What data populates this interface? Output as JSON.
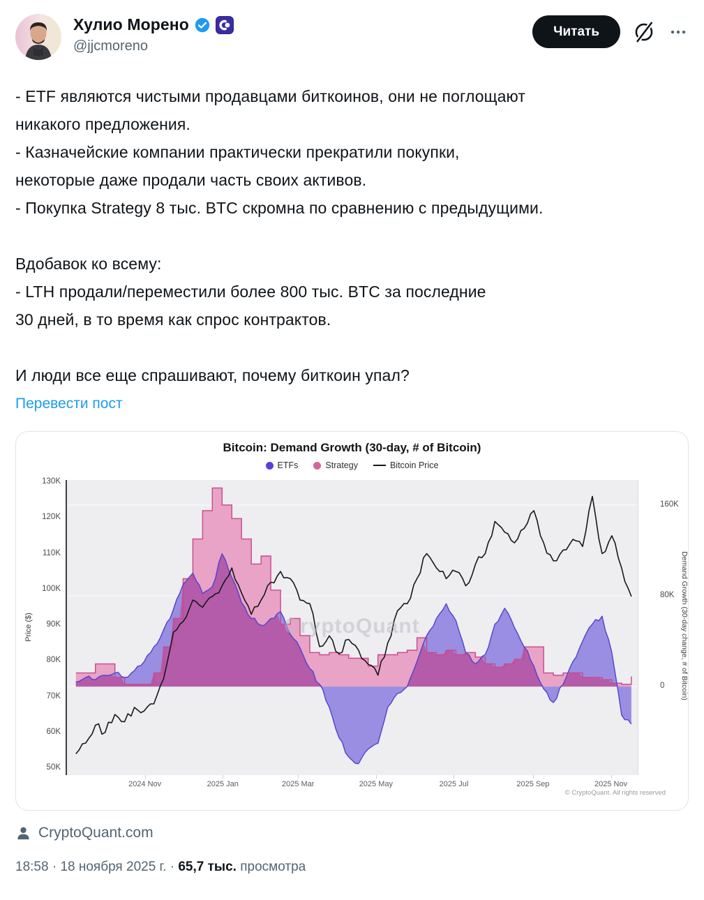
{
  "header": {
    "display_name": "Хулио Морено",
    "handle": "@jjcmoreno",
    "follow_button": "Читать",
    "badges": {
      "verified": "verified-check",
      "affiliate": "CryptoQuant"
    }
  },
  "tweet": {
    "body": "- ETF являются чистыми продавцами биткоинов, они не поглощают\nникакого предложения.\n- Казначейские компании практически прекратили покупки,\nнекоторые даже продали часть своих активов.\n- Покупка Strategy 8 тыс. BTC скромна по сравнению с предыдущими.\n\nВдобавок ко всему:\n- LTH продали/переместили более 800 тыс. BTC за последние\n30 дней, в то время как спрос контрактов.\n\nИ люди все еще спрашивают, почему биткоин упал?",
    "translate_link": "Перевести пост"
  },
  "chart_data": {
    "type": "area",
    "title": "Bitcoin: Demand Growth (30-day, # of Bitcoin)",
    "watermark": "CryptoQuant",
    "copyright": "© CryptoQuant. All rights reserved",
    "legend": [
      {
        "name": "ETFs",
        "color": "#5b3fd6",
        "marker": "dot"
      },
      {
        "name": "Strategy",
        "color": "#d3679d",
        "marker": "dot"
      },
      {
        "name": "Bitcoin Price",
        "color": "#16181c",
        "marker": "line"
      }
    ],
    "colors": {
      "etfs_fill": "#998ee2",
      "etfs_line": "#5242cc",
      "strategy_fill": "#e8a3c6",
      "strategy_line": "#c9488a",
      "overlap_fill": "#b45ca9",
      "price_line": "#16181c",
      "plot_bg": "#eeedf0",
      "grid": "#f8f8f9"
    },
    "x_axis": {
      "start": "2024-09-01",
      "end": "2025-11-22",
      "ticks": [
        {
          "date": "2024-11-01",
          "label": "2024 Nov"
        },
        {
          "date": "2025-01-01",
          "label": "2025 Jan"
        },
        {
          "date": "2025-03-01",
          "label": "2025 Mar"
        },
        {
          "date": "2025-05-01",
          "label": "2025 May"
        },
        {
          "date": "2025-07-01",
          "label": "2025 Jul"
        },
        {
          "date": "2025-09-01",
          "label": "2025 Sep"
        },
        {
          "date": "2025-11-01",
          "label": "2025 Nov"
        }
      ]
    },
    "y_left": {
      "label": "Price ($)",
      "unit": "K USD",
      "min": 50,
      "max": 130,
      "ticks": [
        130,
        120,
        110,
        100,
        90,
        80,
        70,
        60,
        50
      ]
    },
    "y_right": {
      "label": "Demand Growth (30-day change, # of Bitcoin)",
      "unit": "K BTC",
      "min": -78,
      "max": 182,
      "ticks": [
        160,
        80,
        0
      ]
    },
    "series": {
      "start": "2024-09-08",
      "end": "2025-11-17",
      "note": "values estimated from chart pixels; uniform time step between start and end",
      "btc_price_usd_k": [
        54,
        57,
        62,
        60,
        65,
        63,
        67,
        66,
        68,
        75,
        88,
        91,
        97,
        95,
        98,
        101,
        106,
        99,
        93,
        97,
        102,
        105,
        103,
        97,
        96,
        84,
        87,
        82,
        86,
        83,
        79,
        76,
        85,
        94,
        96,
        103,
        110,
        106,
        103,
        105,
        101,
        107,
        110,
        119,
        116,
        113,
        117,
        122,
        113,
        108,
        111,
        114,
        112,
        126,
        110,
        115,
        106,
        98
      ],
      "etfs_btc_k": [
        4,
        8,
        6,
        10,
        12,
        8,
        14,
        22,
        35,
        50,
        68,
        90,
        100,
        82,
        88,
        117,
        96,
        74,
        60,
        54,
        60,
        66,
        46,
        34,
        16,
        2,
        -18,
        -45,
        -62,
        -68,
        -55,
        -50,
        -18,
        -6,
        0,
        22,
        45,
        60,
        73,
        58,
        30,
        20,
        28,
        55,
        69,
        52,
        35,
        18,
        -2,
        -14,
        2,
        22,
        40,
        55,
        62,
        30,
        -25,
        -33
      ],
      "strategy_btc_k": [
        12,
        12,
        20,
        20,
        8,
        2,
        2,
        2,
        12,
        35,
        60,
        95,
        130,
        155,
        175,
        160,
        148,
        130,
        108,
        115,
        85,
        55,
        60,
        45,
        30,
        28,
        30,
        28,
        25,
        25,
        18,
        28,
        28,
        30,
        32,
        43,
        30,
        28,
        32,
        28,
        30,
        26,
        20,
        17,
        20,
        24,
        35,
        35,
        12,
        10,
        12,
        12,
        8,
        8,
        6,
        3,
        2,
        9
      ]
    }
  },
  "attribution": {
    "label": "CryptoQuant.com"
  },
  "footer": {
    "time": "18:58",
    "sep": "·",
    "date": "18 ноября 2025 г.",
    "views": "65,7 тыс.",
    "views_label": "просмотра"
  }
}
